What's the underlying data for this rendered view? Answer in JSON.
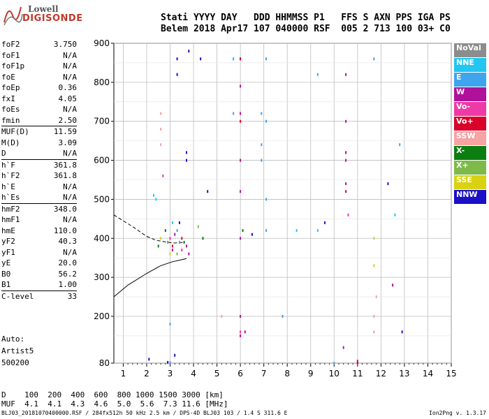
{
  "logo": {
    "line1": "Lowell",
    "line2": "DIGISONDE"
  },
  "header": {
    "line1": "Stati YYYY DAY   DDD HHMMSS P1   FFS S AXN PPS IGA PS",
    "line2": "Belem 2018 Apr17 107 040000 RSF  005 2 713 100 03+ C0"
  },
  "params": [
    {
      "k": "foF2",
      "v": "3.750"
    },
    {
      "k": "foF1",
      "v": "N/A"
    },
    {
      "k": "foF1p",
      "v": "N/A"
    },
    {
      "k": "foE",
      "v": "N/A"
    },
    {
      "k": "foEp",
      "v": "0.36"
    },
    {
      "k": "fxI",
      "v": "4.05"
    },
    {
      "k": "foEs",
      "v": "N/A"
    },
    {
      "k": "fmin",
      "v": "2.50"
    },
    {
      "k": "MUF(D)",
      "v": "11.59"
    },
    {
      "k": "M(D)",
      "v": "3.09"
    },
    {
      "k": "D",
      "v": "N/A"
    },
    {
      "k": "h`F",
      "v": "361.8"
    },
    {
      "k": "h`F2",
      "v": "361.8"
    },
    {
      "k": "h`E",
      "v": "N/A"
    },
    {
      "k": "h`Es",
      "v": "N/A"
    },
    {
      "k": "hmF2",
      "v": "348.0"
    },
    {
      "k": "hmF1",
      "v": "N/A"
    },
    {
      "k": "hmE",
      "v": "110.0"
    },
    {
      "k": "yF2",
      "v": "40.3"
    },
    {
      "k": "yF1",
      "v": "N/A"
    },
    {
      "k": "yE",
      "v": "20.0"
    },
    {
      "k": "B0",
      "v": "56.2"
    },
    {
      "k": "B1",
      "v": "1.00"
    },
    {
      "k": "C-level",
      "v": "33"
    }
  ],
  "autoscaling": {
    "line1": "Auto:",
    "line2": "Artist5",
    "line3": "500200"
  },
  "legend": [
    {
      "label": "NoVal",
      "color": "#8c8c8c"
    },
    {
      "label": "NNE",
      "color": "#22c6f0"
    },
    {
      "label": "E",
      "color": "#3fa4ee"
    },
    {
      "label": "W",
      "color": "#b0119b"
    },
    {
      "label": "Vo-",
      "color": "#ee3aa6"
    },
    {
      "label": "Vo+",
      "color": "#d9002a"
    },
    {
      "label": "SSW",
      "color": "#f5a3a3"
    },
    {
      "label": "X-",
      "color": "#0c7d10"
    },
    {
      "label": "X+",
      "color": "#7dba4a"
    },
    {
      "label": "SSE",
      "color": "#d8d212"
    },
    {
      "label": "NNW",
      "color": "#1b0fc7"
    }
  ],
  "muf_table": {
    "row1": "D    100  200  400  600  800 1000 1500 3000 [km]",
    "row2": "MUF  4.1  4.1  4.3  4.6  5.0  5.6  7.3 11.6 [MHz]"
  },
  "footer": {
    "left": "BLJ03_20181070400000.RSF / 284fx512h 50 kHz 2.5 km / DPS-4D BLJ03 103 / 1.4 S 311.6 E",
    "right": "Ion2Png v. 1.3.17"
  },
  "chart_data": {
    "type": "scatter",
    "x_ticks": [
      "1",
      "2",
      "3",
      "4",
      "5",
      "6",
      "7",
      "8",
      "9",
      "10",
      "11",
      "12",
      "13",
      "14",
      "15"
    ],
    "y_ticks": [
      "80",
      "200",
      "300",
      "400",
      "500",
      "600",
      "700",
      "800",
      "900"
    ],
    "xlim": [
      0.6,
      15
    ],
    "ylim": [
      80,
      900
    ],
    "grid": true,
    "legend_position": "right",
    "series": [
      {
        "name": "E",
        "color": "#3fa4ee",
        "points": [
          [
            3.0,
            82
          ],
          [
            3.0,
            180
          ],
          [
            3.3,
            420
          ],
          [
            3.4,
            390
          ],
          [
            5.7,
            860
          ],
          [
            5.7,
            720
          ],
          [
            6.9,
            720
          ],
          [
            6.9,
            640
          ],
          [
            6.9,
            600
          ],
          [
            7.1,
            860
          ],
          [
            7.1,
            700
          ],
          [
            7.1,
            500
          ],
          [
            7.1,
            420
          ],
          [
            7.8,
            200
          ],
          [
            9.3,
            820
          ],
          [
            10.0,
            80
          ],
          [
            11.7,
            860
          ],
          [
            12.8,
            640
          ]
        ]
      },
      {
        "name": "W",
        "color": "#b0119b",
        "points": [
          [
            2.9,
            390
          ],
          [
            3.1,
            370
          ],
          [
            3.2,
            410
          ],
          [
            3.7,
            380
          ],
          [
            3.8,
            360
          ],
          [
            6.0,
            860
          ],
          [
            6.0,
            790
          ],
          [
            6.0,
            720
          ],
          [
            6.0,
            600
          ],
          [
            6.0,
            520
          ],
          [
            6.0,
            400
          ],
          [
            6.0,
            200
          ],
          [
            6.0,
            150
          ],
          [
            6.2,
            160
          ],
          [
            10.5,
            820
          ],
          [
            10.5,
            700
          ],
          [
            10.5,
            600
          ],
          [
            10.5,
            540
          ],
          [
            10.4,
            120
          ],
          [
            12.5,
            280
          ]
        ]
      },
      {
        "name": "Vo+",
        "color": "#d9002a",
        "points": [
          [
            3.1,
            380
          ],
          [
            3.5,
            400
          ],
          [
            6.0,
            860
          ],
          [
            6.0,
            700
          ],
          [
            10.5,
            620
          ],
          [
            10.5,
            520
          ],
          [
            11.0,
            85
          ],
          [
            11.0,
            80
          ]
        ]
      },
      {
        "name": "X-",
        "color": "#0c7d10",
        "points": [
          [
            2.5,
            380
          ],
          [
            2.8,
            420
          ],
          [
            3.6,
            390
          ],
          [
            4.4,
            400
          ],
          [
            6.1,
            420
          ]
        ]
      },
      {
        "name": "SSE",
        "color": "#d8d212",
        "points": [
          [
            2.6,
            400
          ],
          [
            3.0,
            360
          ],
          [
            11.7,
            400
          ],
          [
            11.7,
            330
          ]
        ]
      },
      {
        "name": "NNW",
        "color": "#1b0fc7",
        "points": [
          [
            2.1,
            90
          ],
          [
            2.9,
            82
          ],
          [
            3.2,
            100
          ],
          [
            3.4,
            440
          ],
          [
            3.7,
            620
          ],
          [
            3.7,
            600
          ],
          [
            3.3,
            860
          ],
          [
            3.3,
            820
          ],
          [
            3.8,
            880
          ],
          [
            4.3,
            860
          ],
          [
            4.6,
            520
          ],
          [
            9.6,
            440
          ],
          [
            12.3,
            540
          ],
          [
            12.9,
            160
          ],
          [
            6.5,
            410
          ]
        ]
      },
      {
        "name": "SSW",
        "color": "#f5a3a3",
        "points": [
          [
            2.6,
            720
          ],
          [
            2.6,
            680
          ],
          [
            2.6,
            640
          ],
          [
            5.2,
            200
          ],
          [
            11.7,
            200
          ],
          [
            11.7,
            160
          ],
          [
            11.8,
            250
          ]
        ]
      },
      {
        "name": "Vo-",
        "color": "#ee3aa6",
        "points": [
          [
            2.7,
            560
          ],
          [
            3.0,
            400
          ],
          [
            3.5,
            370
          ],
          [
            6.0,
            160
          ],
          [
            10.6,
            460
          ]
        ]
      },
      {
        "name": "NNE",
        "color": "#22c6f0",
        "points": [
          [
            2.4,
            500
          ],
          [
            2.3,
            510
          ],
          [
            3.1,
            440
          ],
          [
            5.7,
            860
          ],
          [
            8.4,
            420
          ],
          [
            9.3,
            420
          ],
          [
            12.6,
            460
          ]
        ]
      },
      {
        "name": "X+",
        "color": "#7dba4a",
        "points": [
          [
            2.9,
            390
          ],
          [
            3.3,
            360
          ],
          [
            4.2,
            430
          ]
        ]
      }
    ],
    "curves": [
      {
        "style": "solid",
        "points": [
          [
            0.6,
            250
          ],
          [
            1.2,
            280
          ],
          [
            2.0,
            310
          ],
          [
            2.6,
            330
          ],
          [
            3.1,
            340
          ],
          [
            3.7,
            348
          ]
        ]
      },
      {
        "style": "dashed",
        "points": [
          [
            0.6,
            460
          ],
          [
            1.4,
            430
          ],
          [
            2.0,
            405
          ],
          [
            2.4,
            395
          ],
          [
            2.9,
            390
          ],
          [
            3.2,
            388
          ],
          [
            3.6,
            390
          ]
        ]
      }
    ]
  }
}
